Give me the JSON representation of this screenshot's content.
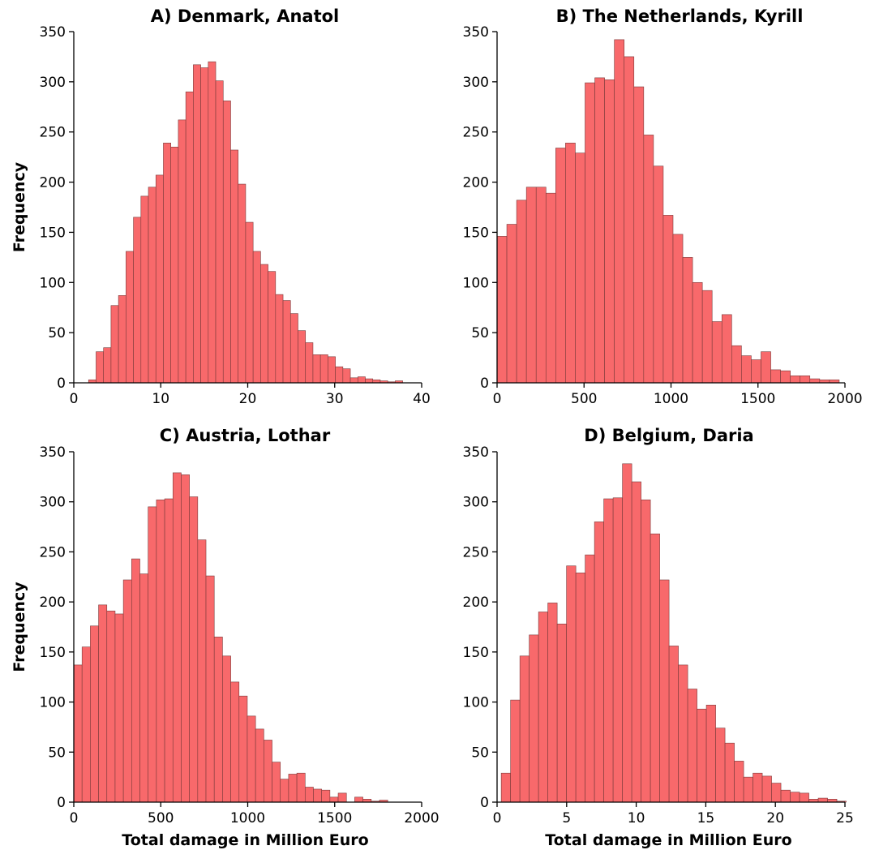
{
  "chart_data": [
    {
      "type": "bar",
      "title": "A) Denmark, Anatol",
      "xlabel": "",
      "ylabel": "Frequency",
      "xlim": [
        0,
        40
      ],
      "ylim": [
        0,
        350
      ],
      "xticks": [
        "0",
        "10",
        "20",
        "30",
        "40"
      ],
      "yticks": [
        "0",
        "50",
        "100",
        "150",
        "200",
        "250",
        "300",
        "350"
      ],
      "bin_start": 1.7,
      "bin_width": 0.86,
      "values": [
        3,
        31,
        35,
        77,
        87,
        131,
        165,
        186,
        195,
        207,
        239,
        235,
        262,
        290,
        317,
        314,
        320,
        301,
        281,
        232,
        198,
        160,
        131,
        118,
        111,
        88,
        82,
        69,
        52,
        40,
        28,
        28,
        26,
        16,
        14,
        5,
        6,
        4,
        3,
        2,
        1,
        2,
        0
      ]
    },
    {
      "type": "bar",
      "title": "B) The Netherlands, Kyrill",
      "xlabel": "",
      "ylabel": "",
      "xlim": [
        0,
        2000
      ],
      "ylim": [
        0,
        350
      ],
      "xticks": [
        "0",
        "500",
        "1000",
        "1500",
        "2000"
      ],
      "yticks": [
        "0",
        "50",
        "100",
        "150",
        "200",
        "250",
        "300",
        "350"
      ],
      "bin_start": 0,
      "bin_width": 56.2,
      "values": [
        146,
        158,
        182,
        195,
        195,
        189,
        234,
        239,
        229,
        299,
        304,
        302,
        342,
        325,
        295,
        247,
        216,
        167,
        148,
        125,
        100,
        92,
        61,
        68,
        37,
        27,
        23,
        31,
        13,
        12,
        7,
        7,
        4,
        3,
        3
      ]
    },
    {
      "type": "bar",
      "title": "C) Austria, Lothar",
      "xlabel": "Total damage in Million Euro",
      "ylabel": "Frequency",
      "xlim": [
        0,
        2000
      ],
      "ylim": [
        0,
        350
      ],
      "xticks": [
        "0",
        "500",
        "1000",
        "1500",
        "2000"
      ],
      "yticks": [
        "0",
        "50",
        "100",
        "150",
        "200",
        "250",
        "300",
        "350"
      ],
      "bin_start": 0,
      "bin_width": 47.5,
      "values": [
        137,
        155,
        176,
        197,
        191,
        188,
        222,
        243,
        228,
        295,
        302,
        303,
        329,
        327,
        305,
        262,
        226,
        165,
        146,
        120,
        106,
        86,
        73,
        62,
        40,
        23,
        28,
        29,
        15,
        13,
        12,
        5,
        9,
        0,
        5,
        3,
        1,
        2
      ]
    },
    {
      "type": "bar",
      "title": "D) Belgium, Daria",
      "xlabel": "Total damage in Million Euro",
      "ylabel": "",
      "xlim": [
        0,
        25
      ],
      "ylim": [
        0,
        350
      ],
      "xticks": [
        "0",
        "5",
        "10",
        "15",
        "20",
        "25"
      ],
      "yticks": [
        "0",
        "50",
        "100",
        "150",
        "200",
        "250",
        "300",
        "350"
      ],
      "bin_start": 0.3,
      "bin_width": 0.67,
      "values": [
        29,
        102,
        146,
        167,
        190,
        199,
        178,
        236,
        229,
        247,
        280,
        303,
        304,
        338,
        320,
        302,
        268,
        222,
        156,
        137,
        113,
        93,
        97,
        74,
        59,
        41,
        25,
        29,
        26,
        19,
        12,
        10,
        9,
        3,
        4,
        3,
        1
      ]
    }
  ]
}
